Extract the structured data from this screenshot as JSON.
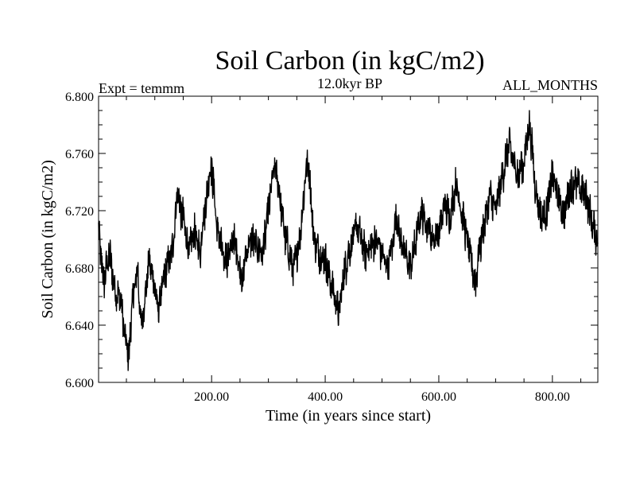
{
  "chart_data": {
    "type": "line",
    "title": "Soil Carbon (in kgC/m2)",
    "subtitle": "12.0kyr BP",
    "left_label": "Expt = temmm",
    "right_label": "ALL_MONTHS",
    "xlabel": "Time (in years since start)",
    "ylabel": "Soil Carbon (in kgC/m2)",
    "xlim": [
      1,
      880
    ],
    "ylim": [
      6.6,
      6.8
    ],
    "xticks": [
      200,
      400,
      600,
      800
    ],
    "xtick_labels": [
      "200.00",
      "400.00",
      "600.00",
      "800.00"
    ],
    "yticks": [
      6.6,
      6.64,
      6.68,
      6.72,
      6.76,
      6.8
    ],
    "ytick_labels": [
      "6.600",
      "6.640",
      "6.680",
      "6.720",
      "6.760",
      "6.800"
    ],
    "series": [
      {
        "name": "Soil Carbon",
        "color": "#000000",
        "x": [
          1,
          10,
          20,
          30,
          40,
          45,
          50,
          55,
          60,
          70,
          75,
          80,
          90,
          100,
          105,
          110,
          120,
          130,
          135,
          140,
          145,
          150,
          160,
          165,
          170,
          180,
          185,
          190,
          195,
          200,
          205,
          210,
          215,
          220,
          230,
          240,
          250,
          255,
          260,
          270,
          280,
          290,
          300,
          305,
          310,
          315,
          320,
          330,
          340,
          345,
          350,
          355,
          360,
          365,
          370,
          375,
          380,
          390,
          400,
          410,
          420,
          425,
          430,
          440,
          450,
          455,
          460,
          470,
          480,
          490,
          500,
          510,
          520,
          525,
          530,
          540,
          550,
          560,
          570,
          580,
          590,
          600,
          610,
          620,
          630,
          640,
          650,
          660,
          665,
          670,
          680,
          690,
          700,
          710,
          720,
          725,
          730,
          740,
          750,
          755,
          760,
          765,
          770,
          780,
          790,
          800,
          810,
          820,
          830,
          840,
          850,
          860,
          870,
          880
        ],
        "values": [
          6.705,
          6.67,
          6.69,
          6.665,
          6.658,
          6.64,
          6.625,
          6.62,
          6.655,
          6.68,
          6.64,
          6.65,
          6.685,
          6.668,
          6.65,
          6.66,
          6.68,
          6.69,
          6.71,
          6.735,
          6.722,
          6.715,
          6.69,
          6.7,
          6.705,
          6.69,
          6.715,
          6.725,
          6.745,
          6.75,
          6.73,
          6.705,
          6.7,
          6.685,
          6.69,
          6.7,
          6.68,
          6.67,
          6.69,
          6.7,
          6.695,
          6.69,
          6.72,
          6.735,
          6.75,
          6.745,
          6.73,
          6.7,
          6.685,
          6.68,
          6.69,
          6.7,
          6.72,
          6.745,
          6.755,
          6.73,
          6.7,
          6.69,
          6.685,
          6.67,
          6.655,
          6.648,
          6.668,
          6.69,
          6.7,
          6.71,
          6.705,
          6.69,
          6.695,
          6.7,
          6.69,
          6.68,
          6.7,
          6.718,
          6.705,
          6.69,
          6.68,
          6.7,
          6.72,
          6.71,
          6.7,
          6.705,
          6.725,
          6.715,
          6.74,
          6.72,
          6.7,
          6.678,
          6.67,
          6.69,
          6.71,
          6.73,
          6.72,
          6.74,
          6.76,
          6.765,
          6.755,
          6.745,
          6.755,
          6.77,
          6.78,
          6.76,
          6.735,
          6.715,
          6.72,
          6.745,
          6.73,
          6.715,
          6.735,
          6.74,
          6.735,
          6.73,
          6.71,
          6.7
        ]
      }
    ]
  }
}
